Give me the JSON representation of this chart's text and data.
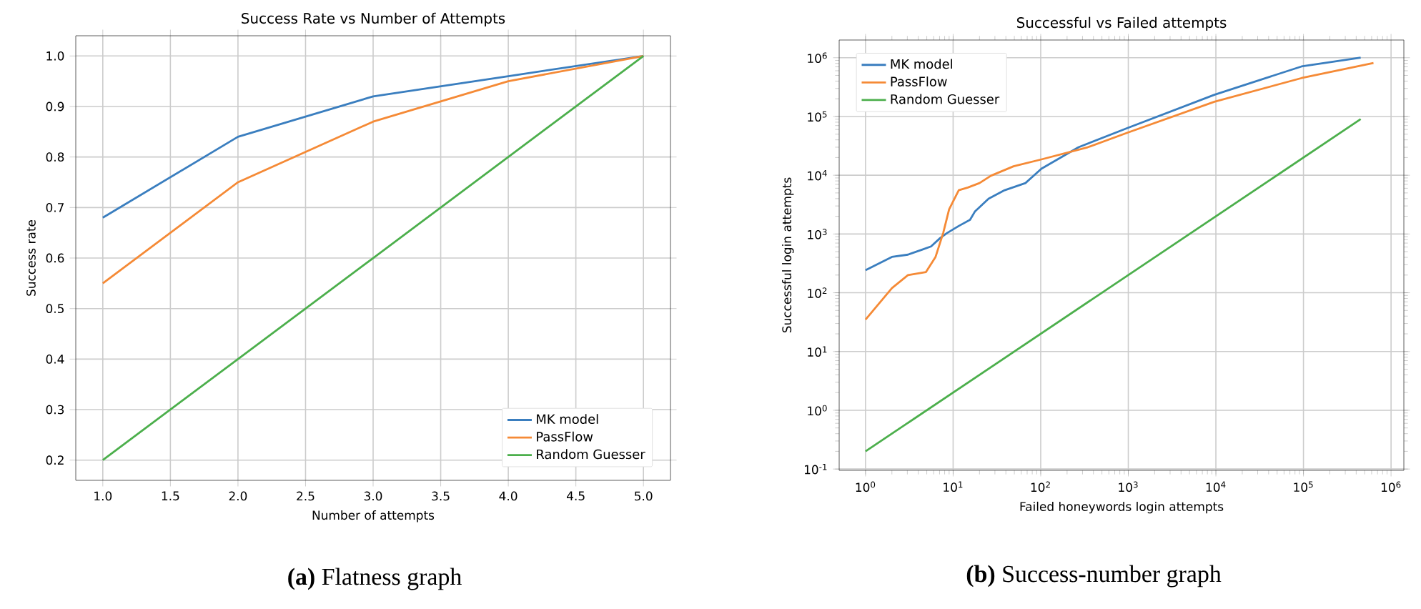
{
  "chart_data": [
    {
      "type": "line",
      "title": "Success Rate vs Number of Attempts",
      "xlabel": "Number of attempts",
      "ylabel": "Success rate",
      "x": [
        1,
        2,
        3,
        4,
        5
      ],
      "series": [
        {
          "name": "MK model",
          "color": "#3a7ebf",
          "values": [
            0.68,
            0.84,
            0.92,
            0.96,
            1.0
          ]
        },
        {
          "name": "PassFlow",
          "color": "#f58a36",
          "values": [
            0.55,
            0.75,
            0.87,
            0.95,
            1.0
          ]
        },
        {
          "name": "Random Guesser",
          "color": "#4caf4c",
          "values": [
            0.2,
            0.4,
            0.6,
            0.8,
            1.0
          ]
        }
      ],
      "xlim": [
        0.8,
        5.2
      ],
      "ylim": [
        0.16,
        1.04
      ],
      "xticks": [
        {
          "value": 1,
          "label": "1.0"
        },
        1.5,
        {
          "value": 2,
          "label": "2.0"
        },
        2.5,
        {
          "value": 3,
          "label": "3.0"
        },
        3.5,
        {
          "value": 4,
          "label": "4.0"
        },
        4.5,
        {
          "value": 5,
          "label": "5.0"
        }
      ],
      "yticks": [
        0.2,
        0.3,
        0.4,
        0.5,
        0.6,
        0.7,
        0.8,
        0.9,
        {
          "value": 1,
          "label": "1.0"
        }
      ],
      "grid": true,
      "legend": "bottom right",
      "line_style": "solid",
      "marker": "none",
      "annotations": [
        "**(a)** Flatness graph"
      ]
    },
    {
      "type": "line",
      "title": "Successful vs Failed attempts",
      "xlabel": "Failed honeywords login attempts",
      "ylabel": "Successful login attempts",
      "series": [
        {
          "name": "MK model",
          "color": "#3a7ebf",
          "x": [
            1,
            2,
            3.05,
            4.4,
            5.6,
            7.1,
            8.5,
            11.6,
            15.6,
            17.7,
            25.4,
            38.8,
            67,
            102,
            270,
            960,
            9600,
            95000,
            450000
          ],
          "values": [
            242,
            407,
            445,
            540,
            615,
            850,
            1035,
            1370,
            1740,
            2400,
            3980,
            5560,
            7360,
            12900,
            29900,
            63000,
            234000,
            710000,
            1000000
          ]
        },
        {
          "name": "PassFlow",
          "color": "#f58a36",
          "x": [
            1,
            2,
            3.05,
            4.9,
            6.3,
            7.7,
            9,
            11.6,
            14.7,
            20,
            27,
            49,
            102,
            343,
            960,
            9600,
            95000,
            630000
          ],
          "values": [
            35,
            120,
            200,
            225,
            407,
            1035,
            2630,
            5560,
            6170,
            7360,
            9800,
            14200,
            18600,
            29900,
            52500,
            178000,
            450000,
            815000
          ]
        },
        {
          "name": "Random Guesser",
          "color": "#4caf4c",
          "x": [
            1,
            450000
          ],
          "values": [
            0.2,
            90000
          ]
        }
      ],
      "log": "xy",
      "xlim": [
        0.5,
        1400000
      ],
      "ylim": [
        0.095,
        2000000
      ],
      "xticks": [
        {
          "value": 1,
          "label": "10$^{0}$"
        },
        {
          "value": 10,
          "label": "10$^{1}$"
        },
        {
          "value": 100,
          "label": "10$^{2}$"
        },
        {
          "value": 1000,
          "label": "10$^{3}$"
        },
        {
          "value": 10000,
          "label": "10$^{4}$"
        },
        {
          "value": 100000,
          "label": "10$^{5}$"
        },
        {
          "value": 1000000,
          "label": "10$^{6}$"
        }
      ],
      "yticks": [
        {
          "value": 0.1,
          "label": "10$^{-1}$"
        },
        {
          "value": 1,
          "label": "10$^{0}$"
        },
        {
          "value": 10,
          "label": "10$^{1}$"
        },
        {
          "value": 100,
          "label": "10$^{2}$"
        },
        {
          "value": 1000,
          "label": "10$^{3}$"
        },
        {
          "value": 10000,
          "label": "10$^{4}$"
        },
        {
          "value": 100000,
          "label": "10$^{5}$"
        },
        {
          "value": 1000000,
          "label": "10$^{6}$"
        }
      ],
      "grid": true,
      "legend": "top left",
      "line_style": "solid",
      "marker": "none",
      "annotations": [
        "**(b)** Success-number graph"
      ]
    }
  ]
}
